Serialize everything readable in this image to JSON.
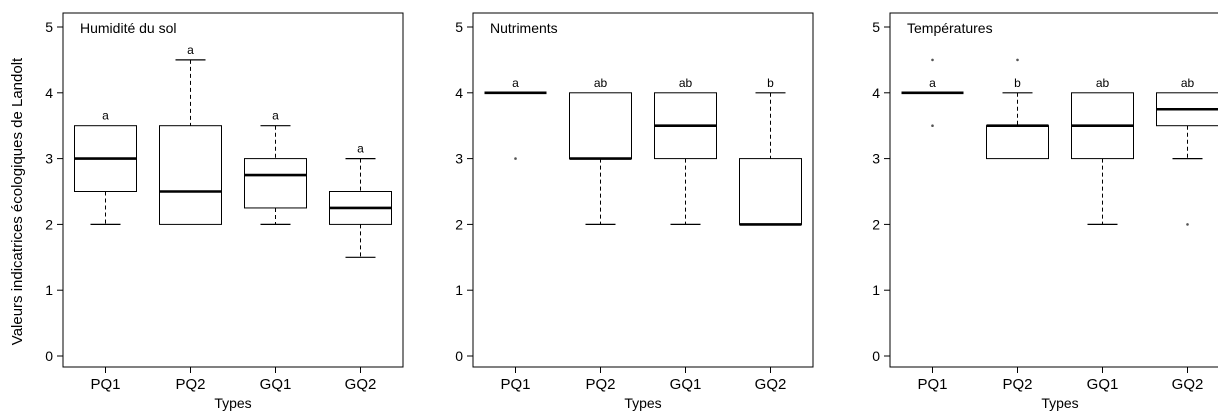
{
  "chart_data": [
    {
      "type": "box",
      "title": "Humidité du sol",
      "xlabel": "Types",
      "ylabel": "Valeurs indicatrices écologiques de Landolt",
      "ylim": [
        0,
        5
      ],
      "yticks": [
        0,
        1,
        2,
        3,
        4,
        5
      ],
      "categories": [
        "PQ1",
        "PQ2",
        "GQ1",
        "GQ2"
      ],
      "boxes": [
        {
          "category": "PQ1",
          "whisker_low": 2,
          "q1": 2.5,
          "median": 3,
          "q3": 3.5,
          "whisker_high": 3.5,
          "outliers": [],
          "letter": "a"
        },
        {
          "category": "PQ2",
          "whisker_low": 2,
          "q1": 2,
          "median": 2.5,
          "q3": 3.5,
          "whisker_high": 4.5,
          "outliers": [],
          "letter": "a"
        },
        {
          "category": "GQ1",
          "whisker_low": 2,
          "q1": 2.25,
          "median": 2.75,
          "q3": 3,
          "whisker_high": 3.5,
          "outliers": [],
          "letter": "a"
        },
        {
          "category": "GQ2",
          "whisker_low": 1.5,
          "q1": 2,
          "median": 2.25,
          "q3": 2.5,
          "whisker_high": 3,
          "outliers": [],
          "letter": "a"
        }
      ]
    },
    {
      "type": "box",
      "title": "Nutriments",
      "xlabel": "Types",
      "ylabel": "",
      "ylim": [
        0,
        5
      ],
      "yticks": [
        0,
        1,
        2,
        3,
        4,
        5
      ],
      "categories": [
        "PQ1",
        "PQ2",
        "GQ1",
        "GQ2"
      ],
      "boxes": [
        {
          "category": "PQ1",
          "whisker_low": 4,
          "q1": 4,
          "median": 4,
          "q3": 4,
          "whisker_high": 4,
          "outliers": [
            3
          ],
          "letter": "a"
        },
        {
          "category": "PQ2",
          "whisker_low": 2,
          "q1": 3,
          "median": 3,
          "q3": 4,
          "whisker_high": 4,
          "outliers": [],
          "letter": "ab"
        },
        {
          "category": "GQ1",
          "whisker_low": 2,
          "q1": 3,
          "median": 3.5,
          "q3": 4,
          "whisker_high": 4,
          "outliers": [],
          "letter": "ab"
        },
        {
          "category": "GQ2",
          "whisker_low": 2,
          "q1": 2,
          "median": 2,
          "q3": 3,
          "whisker_high": 4,
          "outliers": [],
          "letter": "b"
        }
      ]
    },
    {
      "type": "box",
      "title": "Températures",
      "xlabel": "Types",
      "ylabel": "",
      "ylim": [
        0,
        5
      ],
      "yticks": [
        0,
        1,
        2,
        3,
        4,
        5
      ],
      "categories": [
        "PQ1",
        "PQ2",
        "GQ1",
        "GQ2"
      ],
      "boxes": [
        {
          "category": "PQ1",
          "whisker_low": 4,
          "q1": 4,
          "median": 4,
          "q3": 4,
          "whisker_high": 4,
          "outliers": [
            3.5,
            4.5
          ],
          "letter": "a"
        },
        {
          "category": "PQ2",
          "whisker_low": 3,
          "q1": 3,
          "median": 3.5,
          "q3": 3.5,
          "whisker_high": 4,
          "outliers": [
            4.5
          ],
          "letter": "b"
        },
        {
          "category": "GQ1",
          "whisker_low": 2,
          "q1": 3,
          "median": 3.5,
          "q3": 4,
          "whisker_high": 4,
          "outliers": [],
          "letter": "ab"
        },
        {
          "category": "GQ2",
          "whisker_low": 3,
          "q1": 3.5,
          "median": 3.75,
          "q3": 4,
          "whisker_high": 4,
          "outliers": [
            2
          ],
          "letter": "ab"
        }
      ]
    }
  ]
}
